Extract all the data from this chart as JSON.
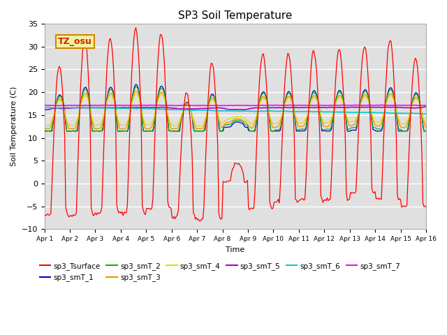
{
  "title": "SP3 Soil Temperature",
  "ylabel": "Soil Temperature (C)",
  "xlabel": "Time",
  "ylim": [
    -10,
    35
  ],
  "xlim": [
    0,
    15
  ],
  "xtick_labels": [
    "Apr 1",
    "Apr 2",
    "Apr 3",
    "Apr 4",
    "Apr 5",
    "Apr 6",
    "Apr 7",
    "Apr 8",
    "Apr 9",
    "Apr 10",
    "Apr 11",
    "Apr 12",
    "Apr 13",
    "Apr 14",
    "Apr 15",
    "Apr 16"
  ],
  "tz_label": "TZ_osu",
  "bg_color": "#e0e0e0",
  "series_colors": {
    "sp3_Tsurface": "#ff0000",
    "sp3_smT_1": "#0000cc",
    "sp3_smT_2": "#00bb00",
    "sp3_smT_3": "#ff8800",
    "sp3_smT_4": "#dddd00",
    "sp3_smT_5": "#aa00cc",
    "sp3_smT_6": "#00cccc",
    "sp3_smT_7": "#ff00ff"
  },
  "legend_order": [
    "sp3_Tsurface",
    "sp3_smT_1",
    "sp3_smT_2",
    "sp3_smT_3",
    "sp3_smT_4",
    "sp3_smT_5",
    "sp3_smT_6",
    "sp3_smT_7"
  ]
}
